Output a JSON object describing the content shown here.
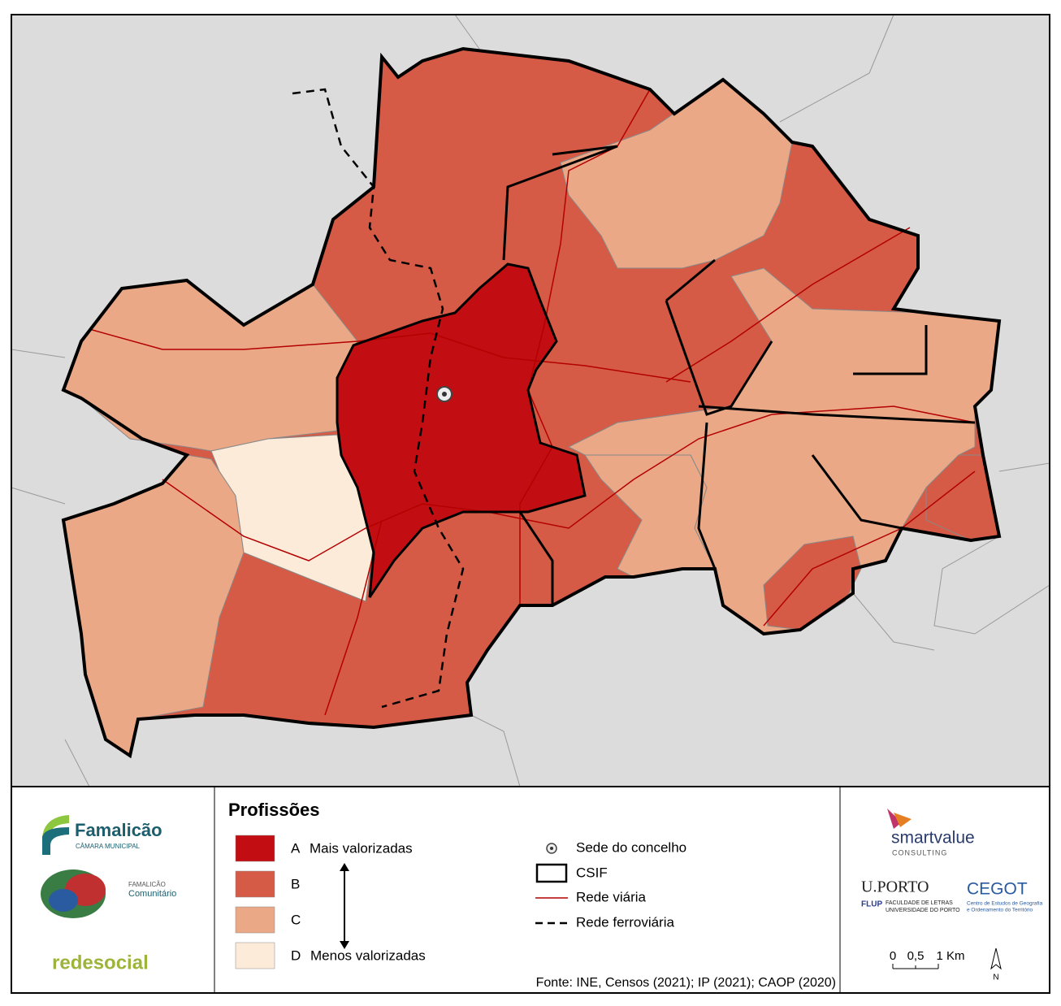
{
  "legend": {
    "title": "Profissões",
    "classes": [
      {
        "letter": "A",
        "label": "Mais valorizadas",
        "color": "#c20e12"
      },
      {
        "letter": "B",
        "color": "#d65b47"
      },
      {
        "letter": "C",
        "color": "#eba886"
      },
      {
        "letter": "D",
        "label": "Menos valorizadas",
        "color": "#fdebd9"
      }
    ],
    "symbols": [
      {
        "label": "Sede do concelho"
      },
      {
        "label": "CSIF"
      },
      {
        "label": "Rede viária"
      },
      {
        "label": "Rede ferroviária"
      }
    ]
  },
  "source": "Fonte: INE, Censos (2021); IP (2021); CAOP (2020)",
  "scale": {
    "ticks": [
      "0",
      "0,5",
      "1 Km"
    ]
  },
  "north": "N",
  "logos": {
    "famalicao": "Famalicão",
    "camara": "CÂMARA MUNICIPAL",
    "fam_small": "FAMALICÃO",
    "comunitario": "Comunitário",
    "redesocial": "redesocial",
    "smart": "smartvalue",
    "consulting": "CONSULTING",
    "uporto": "U.PORTO",
    "flup": "FLUP",
    "faculdade": "FACULDADE DE LETRAS",
    "universidade": "UNIVERSIDADE DO PORTO",
    "cegot": "CEGOT",
    "cegot1": "Centro de Estudos de Geografia",
    "cegot2": "e Ordenamento do Território"
  }
}
